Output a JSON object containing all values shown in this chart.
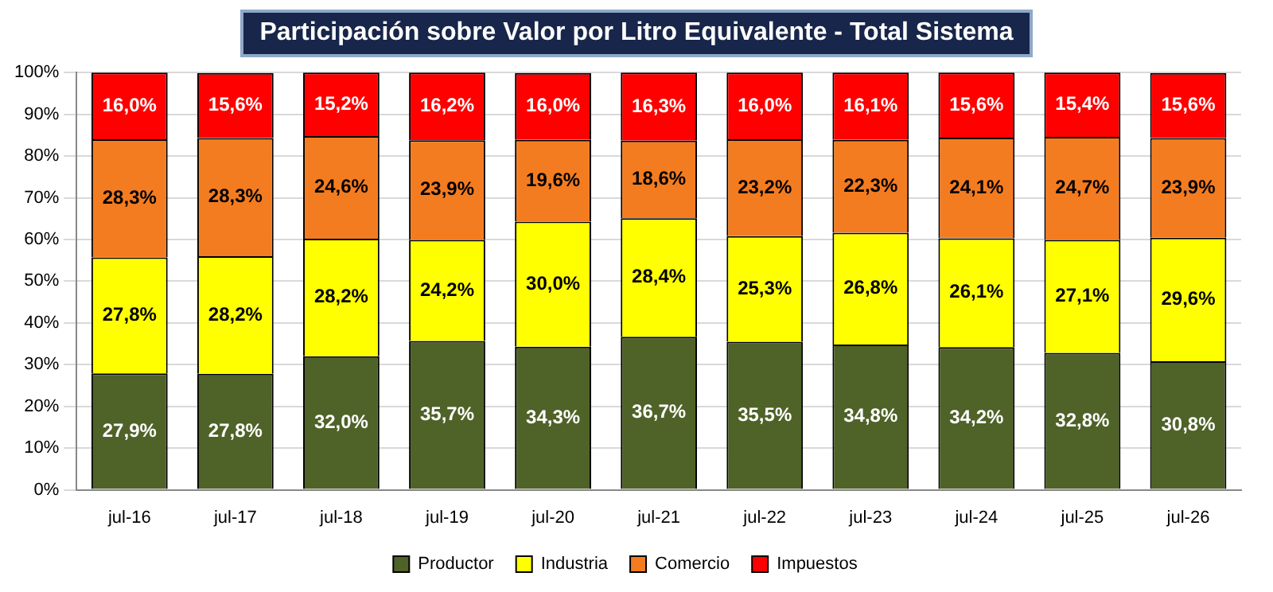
{
  "chart_data": {
    "type": "bar",
    "title": "Participación sobre Valor por Litro Equivalente - Total Sistema",
    "categories": [
      "jul-16",
      "jul-17",
      "jul-18",
      "jul-19",
      "jul-20",
      "jul-21",
      "jul-22",
      "jul-23",
      "jul-24",
      "jul-25",
      "jul-26"
    ],
    "stacked": true,
    "ylim": [
      0,
      100
    ],
    "yticks": [
      {
        "value": 0,
        "label": "0%"
      },
      {
        "value": 10,
        "label": "10%"
      },
      {
        "value": 20,
        "label": "20%"
      },
      {
        "value": 30,
        "label": "30%"
      },
      {
        "value": 40,
        "label": "40%"
      },
      {
        "value": 50,
        "label": "50%"
      },
      {
        "value": 60,
        "label": "60%"
      },
      {
        "value": 70,
        "label": "70%"
      },
      {
        "value": 80,
        "label": "80%"
      },
      {
        "value": 90,
        "label": "90%"
      },
      {
        "value": 100,
        "label": "100%"
      }
    ],
    "grid": "y",
    "legend": "bottom",
    "series": [
      {
        "name": "Productor",
        "color": "#4f6228",
        "values": [
          27.9,
          27.8,
          32.0,
          35.7,
          34.3,
          36.7,
          35.5,
          34.8,
          34.2,
          32.8,
          30.8
        ],
        "value_labels": [
          "27,9%",
          "27,8%",
          "32,0%",
          "35,7%",
          "34,3%",
          "36,7%",
          "35,5%",
          "34,8%",
          "34,2%",
          "32,8%",
          "30,8%"
        ]
      },
      {
        "name": "Industria",
        "color": "#ffff00",
        "values": [
          27.8,
          28.2,
          28.2,
          24.2,
          30.0,
          28.4,
          25.3,
          26.8,
          26.1,
          27.1,
          29.6
        ],
        "value_labels": [
          "27,8%",
          "28,2%",
          "28,2%",
          "24,2%",
          "30,0%",
          "28,4%",
          "25,3%",
          "26,8%",
          "26,1%",
          "27,1%",
          "29,6%"
        ]
      },
      {
        "name": "Comercio",
        "color": "#f47c20",
        "values": [
          28.3,
          28.3,
          24.6,
          23.9,
          19.6,
          18.6,
          23.2,
          22.3,
          24.1,
          24.7,
          23.9
        ],
        "value_labels": [
          "28,3%",
          "28,3%",
          "24,6%",
          "23,9%",
          "19,6%",
          "18,6%",
          "23,2%",
          "22,3%",
          "24,1%",
          "24,7%",
          "23,9%"
        ]
      },
      {
        "name": "Impuestos",
        "color": "#ff0000",
        "values": [
          16.0,
          15.6,
          15.2,
          16.2,
          16.0,
          16.3,
          16.0,
          16.1,
          15.6,
          15.4,
          15.6
        ],
        "value_labels": [
          "16,0%",
          "15,6%",
          "15,2%",
          "16,2%",
          "16,0%",
          "16,3%",
          "16,0%",
          "16,1%",
          "15,6%",
          "15,4%",
          "15,6%"
        ]
      }
    ]
  }
}
